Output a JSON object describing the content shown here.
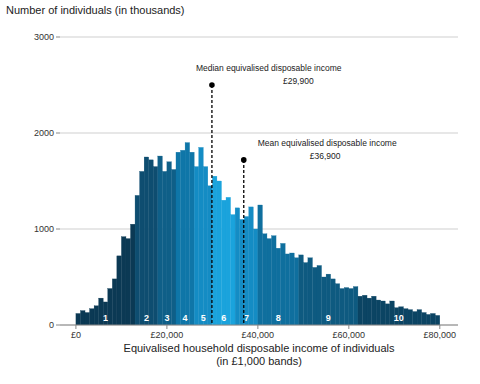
{
  "chart_data": {
    "type": "histogram",
    "ylabel": "Number of individuals (in thousands)",
    "xlabel": [
      "Equivalised household disposable income of individuals",
      "(in £1,000 bands)"
    ],
    "bins": [
      0,
      1000,
      2000,
      3000,
      4000,
      5000,
      6000,
      7000,
      8000,
      9000,
      10000,
      11000,
      12000,
      13000,
      14000,
      15000,
      16000,
      17000,
      18000,
      19000,
      20000,
      21000,
      22000,
      23000,
      24000,
      25000,
      26000,
      27000,
      28000,
      29000,
      30000,
      31000,
      32000,
      33000,
      34000,
      35000,
      36000,
      37000,
      38000,
      39000,
      40000,
      41000,
      42000,
      43000,
      44000,
      45000,
      46000,
      47000,
      48000,
      49000,
      50000,
      51000,
      52000,
      53000,
      54000,
      55000,
      56000,
      57000,
      58000,
      59000,
      60000,
      61000,
      62000,
      63000,
      64000,
      65000,
      66000,
      67000,
      68000,
      69000,
      70000,
      71000,
      72000,
      73000,
      74000,
      75000,
      76000,
      77000,
      78000,
      79000,
      80000
    ],
    "values": [
      120,
      150,
      130,
      170,
      200,
      280,
      240,
      380,
      480,
      720,
      920,
      900,
      1050,
      1350,
      1600,
      1750,
      1720,
      1650,
      1760,
      1600,
      1700,
      1620,
      1800,
      1820,
      1900,
      1800,
      1650,
      1850,
      1650,
      1450,
      1550,
      1500,
      1300,
      1330,
      1150,
      1220,
      1100,
      1130,
      1230,
      1000,
      1250,
      950,
      900,
      930,
      800,
      850,
      740,
      750,
      700,
      730,
      650,
      700,
      600,
      620,
      500,
      530,
      480,
      430,
      380,
      390,
      380,
      400,
      300,
      310,
      280,
      300,
      260,
      250,
      220,
      250,
      180,
      190,
      170,
      160,
      140,
      160,
      130,
      110,
      120,
      100
    ],
    "colors": [
      "#0b3954",
      "#0b3954",
      "#0b3954",
      "#0b3954",
      "#0b3954",
      "#0b3954",
      "#0b3954",
      "#0b3954",
      "#0b3954",
      "#0b3954",
      "#0b3954",
      "#0b3954",
      "#0b3954",
      "#0e4d70",
      "#0e4d70",
      "#0e4d70",
      "#0e4d70",
      "#0e4d70",
      "#0f5f88",
      "#0f5f88",
      "#0f5f88",
      "#0f5f88",
      "#0f76a8",
      "#0f76a8",
      "#0f76a8",
      "#0f76a8",
      "#148cc4",
      "#148cc4",
      "#148cc4",
      "#148cc4",
      "#1aa3dc",
      "#1aa3dc",
      "#1aa3dc",
      "#1aa3dc",
      "#1aa3dc",
      "#148cc4",
      "#148cc4",
      "#148cc4",
      "#148cc4",
      "#148cc4",
      "#0f6f9e",
      "#0f6f9e",
      "#0f6f9e",
      "#0f6f9e",
      "#0f6f9e",
      "#0f6f9e",
      "#0f6f9e",
      "#0f6f9e",
      "#0f6f9e",
      "#0e5a80",
      "#0e5a80",
      "#0e5a80",
      "#0e5a80",
      "#0e5a80",
      "#0e5a80",
      "#0e5a80",
      "#0e5a80",
      "#0e5a80",
      "#0e5a80",
      "#0e5a80",
      "#0e5a80",
      "#0e5a80",
      "#0b4463",
      "#0b4463",
      "#0b4463",
      "#0b4463",
      "#0b4463",
      "#0b4463",
      "#0b4463",
      "#0b4463",
      "#0b4463",
      "#0b4463",
      "#0b4463",
      "#0b4463",
      "#0b4463",
      "#0b4463",
      "#0b4463",
      "#0b4463",
      "#0b4463",
      "#0b4463"
    ],
    "xlim": [
      -3500,
      84000
    ],
    "ylim": [
      0,
      3000
    ],
    "xticks": [
      {
        "value": 0,
        "label": "£0"
      },
      {
        "value": 20000,
        "label": "£20,000"
      },
      {
        "value": 40000,
        "label": "£40,000"
      },
      {
        "value": 60000,
        "label": "£60,000"
      },
      {
        "value": 80000,
        "label": "£80,000"
      }
    ],
    "yticks": [
      0,
      1000,
      2000,
      3000
    ],
    "grid": true,
    "decile_labels": [
      {
        "label": "1",
        "x": 6500
      },
      {
        "label": "2",
        "x": 15500
      },
      {
        "label": "3",
        "x": 20000
      },
      {
        "label": "4",
        "x": 24000
      },
      {
        "label": "5",
        "x": 28000
      },
      {
        "label": "6",
        "x": 32500
      },
      {
        "label": "7",
        "x": 37500
      },
      {
        "label": "8",
        "x": 44500
      },
      {
        "label": "9",
        "x": 55500
      },
      {
        "label": "10",
        "x": 71000
      }
    ],
    "annotations": [
      {
        "text": "Median equivalised disposable income",
        "value_label": "£29,900",
        "x": 29900,
        "y": 2500
      },
      {
        "text": "Mean equivalised disposable income",
        "value_label": "£36,900",
        "x": 36900,
        "y": 1720
      }
    ]
  }
}
